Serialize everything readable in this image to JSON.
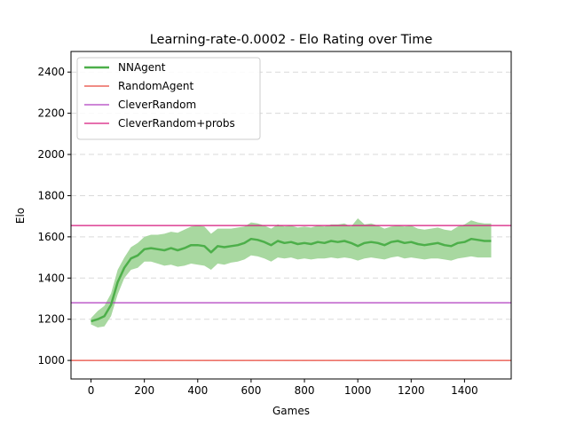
{
  "chart_data": {
    "type": "line",
    "title": "Learning-rate-0.0002 - Elo Rating over Time",
    "xlabel": "Games",
    "ylabel": "Elo",
    "xlim": [
      -75,
      1575
    ],
    "ylim": [
      910,
      2500
    ],
    "xticks": [
      0,
      200,
      400,
      600,
      800,
      1000,
      1200,
      1400
    ],
    "yticks": [
      1000,
      1200,
      1400,
      1600,
      1800,
      2000,
      2200,
      2400
    ],
    "grid": "y-dashed",
    "legend": "top-left",
    "series": [
      {
        "name": "NNAgent",
        "kind": "line-with-band",
        "color": "#4daf4a",
        "band_color": "#a8d8a0",
        "x": [
          0,
          25,
          50,
          75,
          100,
          125,
          150,
          175,
          200,
          225,
          250,
          275,
          300,
          325,
          350,
          375,
          400,
          425,
          450,
          475,
          500,
          525,
          550,
          575,
          600,
          625,
          650,
          675,
          700,
          725,
          750,
          775,
          800,
          825,
          850,
          875,
          900,
          925,
          950,
          975,
          1000,
          1025,
          1050,
          1075,
          1100,
          1125,
          1150,
          1175,
          1200,
          1225,
          1250,
          1275,
          1300,
          1325,
          1350,
          1375,
          1400,
          1425,
          1450,
          1475,
          1500
        ],
        "y": [
          1190,
          1200,
          1215,
          1270,
          1380,
          1450,
          1495,
          1510,
          1540,
          1545,
          1540,
          1535,
          1545,
          1535,
          1545,
          1560,
          1560,
          1555,
          1525,
          1555,
          1550,
          1555,
          1560,
          1570,
          1590,
          1585,
          1575,
          1560,
          1580,
          1570,
          1575,
          1565,
          1570,
          1565,
          1575,
          1570,
          1580,
          1575,
          1580,
          1570,
          1555,
          1570,
          1575,
          1570,
          1560,
          1575,
          1580,
          1570,
          1575,
          1565,
          1560,
          1565,
          1570,
          1560,
          1555,
          1570,
          1575,
          1590,
          1585,
          1580,
          1580
        ],
        "lower": [
          1175,
          1160,
          1165,
          1215,
          1320,
          1400,
          1440,
          1450,
          1480,
          1480,
          1470,
          1460,
          1465,
          1455,
          1460,
          1470,
          1465,
          1460,
          1440,
          1470,
          1465,
          1475,
          1480,
          1490,
          1510,
          1505,
          1495,
          1480,
          1500,
          1495,
          1500,
          1490,
          1495,
          1490,
          1495,
          1495,
          1500,
          1495,
          1500,
          1495,
          1485,
          1495,
          1500,
          1495,
          1490,
          1500,
          1505,
          1495,
          1500,
          1495,
          1490,
          1495,
          1495,
          1490,
          1485,
          1495,
          1500,
          1505,
          1500,
          1500,
          1500
        ],
        "upper": [
          1205,
          1240,
          1265,
          1325,
          1440,
          1500,
          1550,
          1570,
          1600,
          1610,
          1610,
          1615,
          1625,
          1620,
          1635,
          1650,
          1655,
          1650,
          1615,
          1640,
          1640,
          1640,
          1645,
          1650,
          1670,
          1665,
          1655,
          1640,
          1660,
          1650,
          1655,
          1645,
          1650,
          1645,
          1655,
          1650,
          1660,
          1660,
          1665,
          1650,
          1690,
          1660,
          1665,
          1655,
          1640,
          1650,
          1655,
          1650,
          1655,
          1640,
          1635,
          1640,
          1645,
          1635,
          1630,
          1650,
          1660,
          1680,
          1670,
          1665,
          1665
        ]
      },
      {
        "name": "RandomAgent",
        "kind": "hline",
        "color": "#e8483c",
        "y": 1000
      },
      {
        "name": "CleverRandom",
        "kind": "hline",
        "color": "#b03dbf",
        "y": 1280
      },
      {
        "name": "CleverRandom+probs",
        "kind": "hline",
        "color": "#d6197e",
        "y": 1655
      }
    ]
  }
}
